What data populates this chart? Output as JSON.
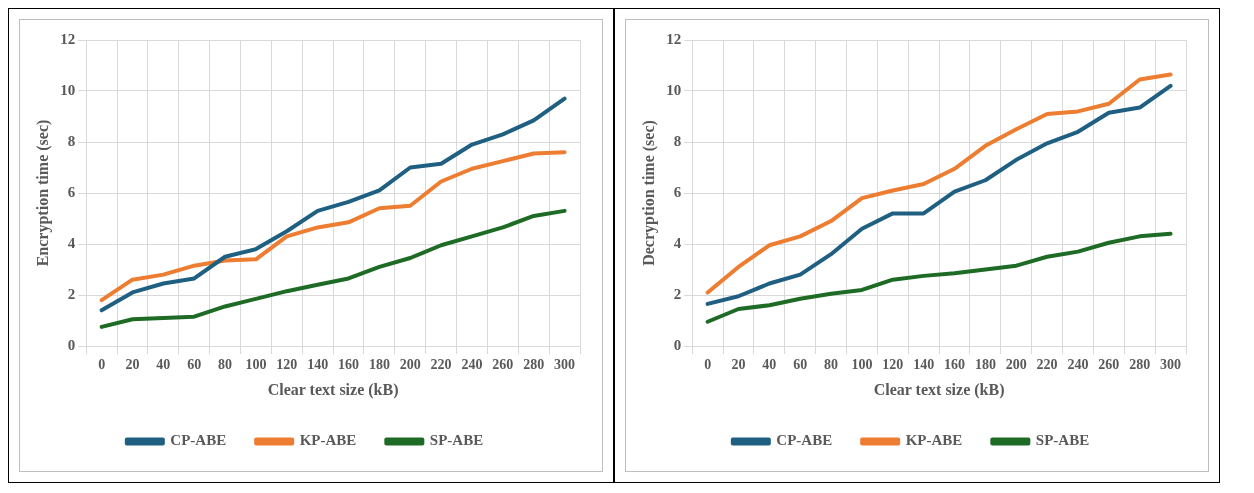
{
  "chart_data": [
    {
      "type": "line",
      "xlabel": "Clear text size (kB)",
      "ylabel": "Encryption time (sec)",
      "categories": [
        "0",
        "20",
        "40",
        "60",
        "80",
        "100",
        "120",
        "140",
        "160",
        "180",
        "200",
        "220",
        "240",
        "260",
        "280",
        "300"
      ],
      "ylim": [
        0,
        12
      ],
      "yticks": [
        0,
        2,
        4,
        6,
        8,
        10,
        12
      ],
      "grid": true,
      "legend": "bottom",
      "marker": "none",
      "series": [
        {
          "name": "CP-ABE",
          "color": "#1f5f82",
          "values": [
            1.4,
            2.1,
            2.45,
            2.65,
            3.5,
            3.8,
            4.5,
            5.3,
            5.65,
            6.1,
            7.0,
            7.15,
            7.9,
            8.3,
            8.85,
            9.7
          ]
        },
        {
          "name": "KP-ABE",
          "color": "#ed7d31",
          "values": [
            1.8,
            2.6,
            2.8,
            3.15,
            3.35,
            3.4,
            4.3,
            4.65,
            4.85,
            5.4,
            5.5,
            6.45,
            6.95,
            7.25,
            7.55,
            7.6
          ]
        },
        {
          "name": "SP-ABE",
          "color": "#1e6b25",
          "values": [
            0.75,
            1.05,
            1.1,
            1.15,
            1.55,
            1.85,
            2.15,
            2.4,
            2.65,
            3.1,
            3.45,
            3.95,
            4.3,
            4.65,
            5.1,
            5.3
          ]
        }
      ]
    },
    {
      "type": "line",
      "xlabel": "Clear text size (kB)",
      "ylabel": "Decryption time (sec)",
      "categories": [
        "0",
        "20",
        "40",
        "60",
        "80",
        "100",
        "120",
        "140",
        "160",
        "180",
        "200",
        "220",
        "240",
        "260",
        "280",
        "300"
      ],
      "ylim": [
        0,
        12
      ],
      "yticks": [
        0,
        2,
        4,
        6,
        8,
        10,
        12
      ],
      "grid": true,
      "legend": "bottom",
      "marker": "none",
      "series": [
        {
          "name": "CP-ABE",
          "color": "#1f5f82",
          "values": [
            1.65,
            1.95,
            2.45,
            2.8,
            3.6,
            4.6,
            5.2,
            5.2,
            6.05,
            6.5,
            7.3,
            7.95,
            8.4,
            9.15,
            9.35,
            10.2
          ]
        },
        {
          "name": "KP-ABE",
          "color": "#ed7d31",
          "values": [
            2.1,
            3.1,
            3.95,
            4.3,
            4.9,
            5.8,
            6.1,
            6.35,
            6.95,
            7.85,
            8.5,
            9.1,
            9.2,
            9.5,
            10.45,
            10.65
          ]
        },
        {
          "name": "SP-ABE",
          "color": "#1e6b25",
          "values": [
            0.95,
            1.45,
            1.6,
            1.85,
            2.05,
            2.2,
            2.6,
            2.75,
            2.85,
            3.0,
            3.15,
            3.5,
            3.7,
            4.05,
            4.3,
            4.4
          ]
        }
      ]
    }
  ]
}
